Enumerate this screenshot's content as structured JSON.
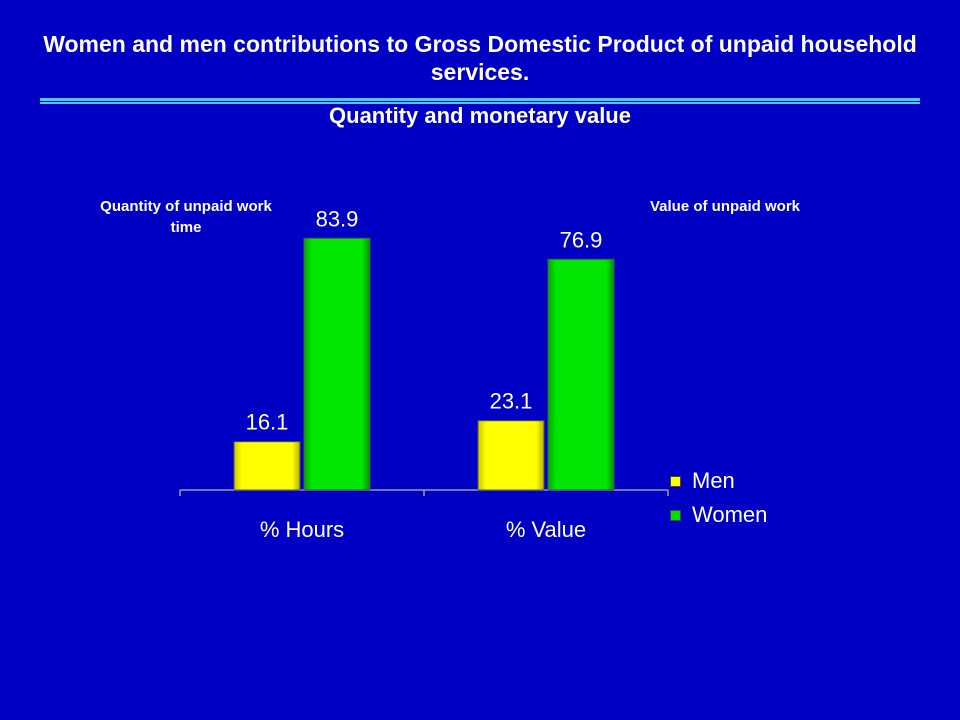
{
  "title": "Women and men contributions to Gross Domestic Product of unpaid household services.",
  "subtitle": "Quantity and monetary value",
  "notes": {
    "left": "Quantity of unpaid work time",
    "right": "Value of unpaid work"
  },
  "colors": {
    "background": "#0000c4",
    "men": "#ffff00",
    "women": "#00dd00",
    "rule": "#4fc8ff"
  },
  "chart_data": {
    "type": "bar",
    "categories": [
      "% Hours",
      "% Value"
    ],
    "series": [
      {
        "name": "Men",
        "values": [
          16.1,
          23.1
        ],
        "color": "#ffff00"
      },
      {
        "name": "Women",
        "values": [
          83.9,
          76.9
        ],
        "color": "#00dd00"
      }
    ],
    "ylim": [
      0,
      100
    ],
    "grid": false,
    "legend": "right",
    "data_labels": true
  }
}
